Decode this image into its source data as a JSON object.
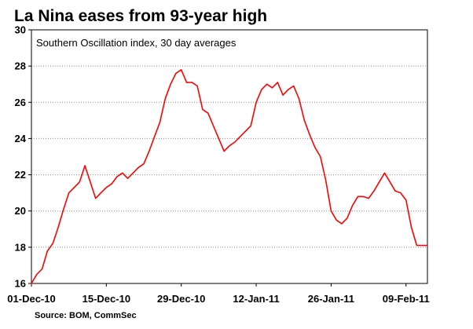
{
  "chart_data": {
    "type": "line",
    "title": "La Nina eases from 93-year high",
    "subtitle": "Southern Oscillation index, 30 day averages",
    "source": "Source: BOM, CommSec",
    "xlabel": "",
    "ylabel": "",
    "ylim": [
      16,
      30
    ],
    "y_ticks": [
      16,
      18,
      20,
      22,
      24,
      26,
      28,
      30
    ],
    "x_ticks": [
      "01-Dec-10",
      "15-Dec-10",
      "29-Dec-10",
      "12-Jan-11",
      "26-Jan-11",
      "09-Feb-11"
    ],
    "x_tick_dates": [
      "2010-12-01",
      "2010-12-15",
      "2010-12-29",
      "2011-01-12",
      "2011-01-26",
      "2011-02-09"
    ],
    "xlim": [
      "2010-12-01",
      "2011-02-13"
    ],
    "grid": "horizontal dotted",
    "line_color": "#ff0000",
    "series": [
      {
        "x": [
          "2010-12-01",
          "2010-12-02",
          "2010-12-03",
          "2010-12-04",
          "2010-12-05",
          "2010-12-06",
          "2010-12-07",
          "2010-12-08",
          "2010-12-09",
          "2010-12-10",
          "2010-12-11",
          "2010-12-12",
          "2010-12-13",
          "2010-12-14",
          "2010-12-15",
          "2010-12-16",
          "2010-12-17",
          "2010-12-18",
          "2010-12-19",
          "2010-12-20",
          "2010-12-21",
          "2010-12-22",
          "2010-12-23",
          "2010-12-24",
          "2010-12-25",
          "2010-12-26",
          "2010-12-27",
          "2010-12-28",
          "2010-12-29",
          "2010-12-30",
          "2010-12-31",
          "2011-01-01",
          "2011-01-02",
          "2011-01-03",
          "2011-01-04",
          "2011-01-05",
          "2011-01-06",
          "2011-01-07",
          "2011-01-08",
          "2011-01-09",
          "2011-01-10",
          "2011-01-11",
          "2011-01-12",
          "2011-01-13",
          "2011-01-14",
          "2011-01-15",
          "2011-01-16",
          "2011-01-17",
          "2011-01-18",
          "2011-01-19",
          "2011-01-20",
          "2011-01-21",
          "2011-01-22",
          "2011-01-23",
          "2011-01-24",
          "2011-01-25",
          "2011-01-26",
          "2011-01-27",
          "2011-01-28",
          "2011-01-29",
          "2011-01-30",
          "2011-01-31",
          "2011-02-01",
          "2011-02-02",
          "2011-02-03",
          "2011-02-04",
          "2011-02-05",
          "2011-02-06",
          "2011-02-07",
          "2011-02-08",
          "2011-02-09",
          "2011-02-10",
          "2011-02-11",
          "2011-02-12",
          "2011-02-13"
        ],
        "y": [
          16.0,
          16.5,
          16.8,
          17.8,
          18.2,
          19.1,
          20.1,
          21.0,
          21.3,
          21.6,
          22.5,
          21.6,
          20.7,
          21.0,
          21.3,
          21.5,
          21.9,
          22.1,
          21.8,
          22.1,
          22.4,
          22.6,
          23.3,
          24.1,
          24.9,
          26.2,
          27.0,
          27.6,
          27.8,
          27.1,
          27.1,
          26.9,
          25.6,
          25.4,
          24.7,
          24.0,
          23.3,
          23.6,
          23.8,
          24.1,
          24.4,
          24.7,
          26.0,
          26.7,
          27.0,
          26.8,
          27.1,
          26.4,
          26.7,
          26.9,
          26.2,
          25.0,
          24.2,
          23.5,
          23.0,
          21.7,
          20.0,
          19.5,
          19.3,
          19.6,
          20.3,
          20.8,
          20.8,
          20.7,
          21.1,
          21.6,
          22.1,
          21.6,
          21.1,
          21.0,
          20.6,
          19.1,
          18.1,
          18.1,
          18.1
        ]
      }
    ]
  }
}
